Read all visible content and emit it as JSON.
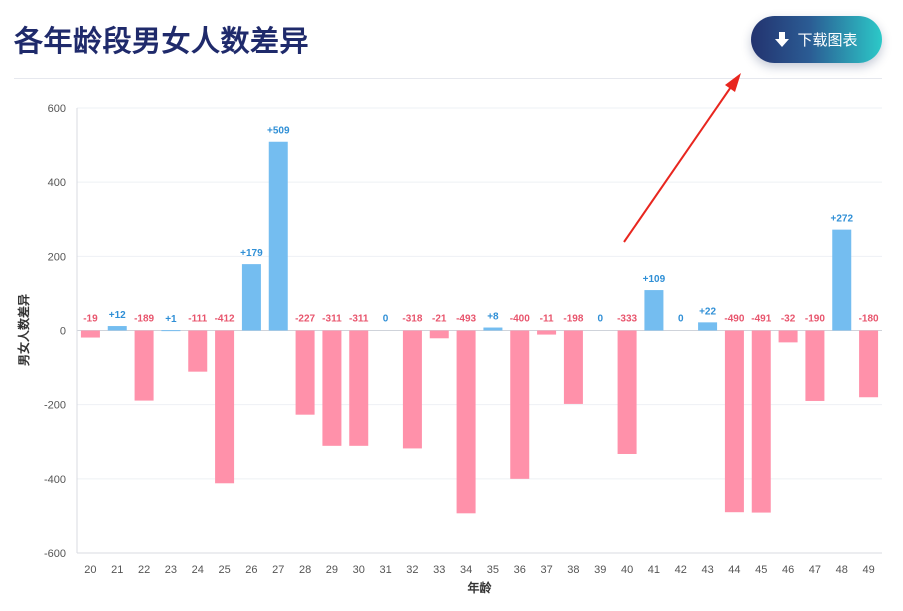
{
  "header": {
    "title": "各年龄段男女人数差异",
    "download_label": "下载图表"
  },
  "colors": {
    "positive_bar": "#74bdf0",
    "negative_bar": "#ff91aa",
    "positive_label": "#2f8fd6",
    "negative_label": "#e8556d",
    "arrow": "#e8261f",
    "title": "#1f2a6b"
  },
  "chart_data": {
    "type": "bar",
    "xlabel": "年龄",
    "ylabel": "男女人数差异",
    "ylim": [
      -600,
      600
    ],
    "yticks": [
      600,
      400,
      200,
      0,
      -200,
      -400,
      -600
    ],
    "grid": true,
    "categories": [
      "20",
      "21",
      "22",
      "23",
      "24",
      "25",
      "26",
      "27",
      "28",
      "29",
      "30",
      "31",
      "32",
      "33",
      "34",
      "35",
      "36",
      "37",
      "38",
      "39",
      "40",
      "41",
      "42",
      "43",
      "44",
      "45",
      "46",
      "47",
      "48",
      "49"
    ],
    "values": [
      -19,
      12,
      -189,
      1,
      -111,
      -412,
      179,
      509,
      -227,
      -311,
      -311,
      0,
      -318,
      -21,
      -493,
      8,
      -400,
      -11,
      -198,
      0,
      -333,
      109,
      0,
      22,
      -490,
      -491,
      -32,
      -190,
      272,
      -180
    ],
    "data_labels": [
      "-19",
      "+12",
      "-189",
      "+1",
      "-111",
      "-412",
      "+179",
      "+509",
      "-227",
      "-311",
      "-311",
      "0",
      "-318",
      "-21",
      "-493",
      "+8",
      "-400",
      "-11",
      "-198",
      "0",
      "-333",
      "+109",
      "0",
      "+22",
      "-490",
      "-491",
      "-32",
      "-190",
      "+272",
      "-180"
    ]
  }
}
